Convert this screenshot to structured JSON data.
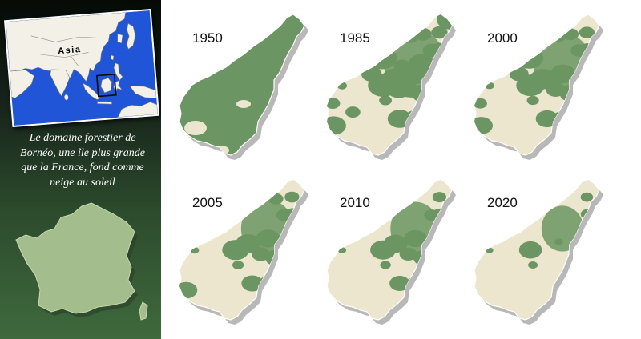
{
  "inset_map": {
    "label": "Asia",
    "colors": {
      "ocean": "#1f55d6",
      "land": "#f3f1e7",
      "border": "#8a8a8a",
      "highlight_box": "#0a0a0a"
    }
  },
  "caption": {
    "lines": [
      "Le domaine forestier de",
      "Bornéo, une île plus grande",
      "que la France, fond comme",
      "neige au soleil"
    ]
  },
  "france_map": {
    "fill": "#a4bd8c"
  },
  "panels": [
    {
      "year": "1950",
      "forest_cover": 0.97
    },
    {
      "year": "1985",
      "forest_cover": 0.74
    },
    {
      "year": "2000",
      "forest_cover": 0.64
    },
    {
      "year": "2005",
      "forest_cover": 0.55
    },
    {
      "year": "2010",
      "forest_cover": 0.47
    },
    {
      "year": "2020",
      "forest_cover": 0.32
    }
  ],
  "colors": {
    "forest": "#6b9562",
    "cleared": "#ebe6cd",
    "shadow": "#7e7e7e"
  }
}
